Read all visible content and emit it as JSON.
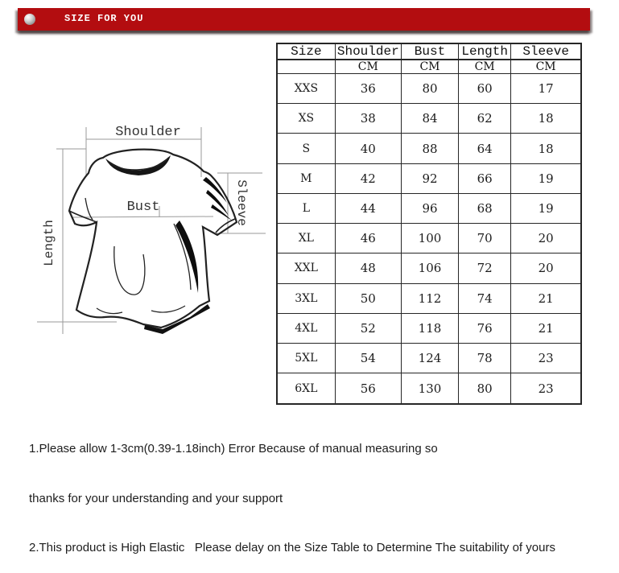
{
  "header": {
    "title": "SIZE FOR YOU",
    "bar_color": "#b30d10"
  },
  "diagram": {
    "labels": {
      "shoulder": "Shoulder",
      "bust": "Bust",
      "sleeve": "Sleeve",
      "length": "Length"
    }
  },
  "table": {
    "columns": [
      "Size",
      "Shoulder",
      "Bust",
      "Length",
      "Sleeve"
    ],
    "units": [
      "",
      "CM",
      "CM",
      "CM",
      "CM"
    ],
    "rows": [
      [
        "XXS",
        "36",
        "80",
        "60",
        "17"
      ],
      [
        "XS",
        "38",
        "84",
        "62",
        "18"
      ],
      [
        "S",
        "40",
        "88",
        "64",
        "18"
      ],
      [
        "M",
        "42",
        "92",
        "66",
        "19"
      ],
      [
        "L",
        "44",
        "96",
        "68",
        "19"
      ],
      [
        "XL",
        "46",
        "100",
        "70",
        "20"
      ],
      [
        "XXL",
        "48",
        "106",
        "72",
        "20"
      ],
      [
        "3XL",
        "50",
        "112",
        "74",
        "21"
      ],
      [
        "4XL",
        "52",
        "118",
        "76",
        "21"
      ],
      [
        "5XL",
        "54",
        "124",
        "78",
        "23"
      ],
      [
        "6XL",
        "56",
        "130",
        "80",
        "23"
      ]
    ]
  },
  "notes": [
    "1.Please allow 1-3cm(0.39-1.18inch) Error Because of manual measuring so",
    "thanks for your understanding and your support",
    "2.This product is High Elastic   Please delay on the Size Table to Determine The suitability of yours"
  ]
}
